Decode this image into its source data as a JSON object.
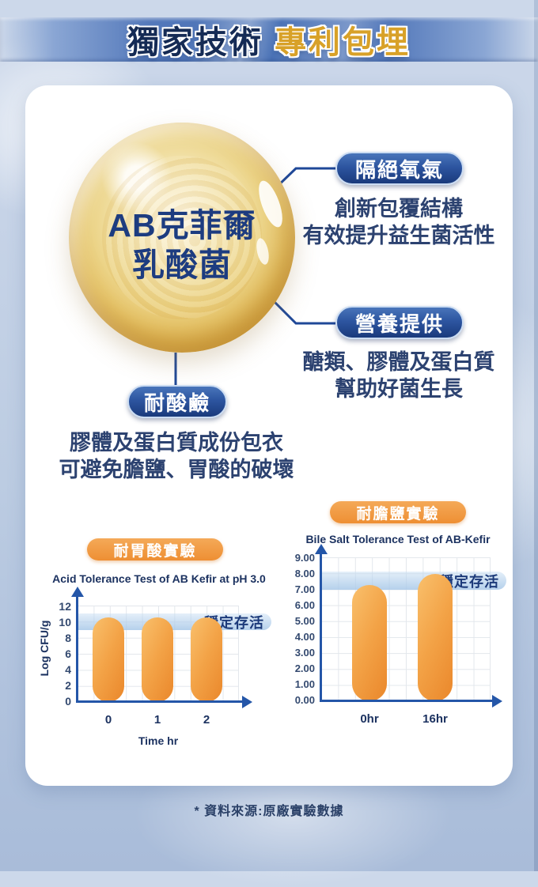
{
  "header": {
    "title_part1": "獨家技術",
    "title_part2": "專利包埋"
  },
  "bubble": {
    "line1": "AB克菲爾",
    "line2": "乳酸菌"
  },
  "callouts": {
    "oxygen": {
      "label": "隔絕氧氣",
      "desc_line1": "創新包覆結構",
      "desc_line2": "有效提升益生菌活性"
    },
    "nutrition": {
      "label": "營養提供",
      "desc_line1": "醣類、膠體及蛋白質",
      "desc_line2": "幫助好菌生長"
    },
    "acid": {
      "label": "耐酸鹼",
      "desc_line1": "膠體及蛋白質成份包衣",
      "desc_line2": "可避免膽鹽、胃酸的破壞"
    }
  },
  "chart_data": [
    {
      "type": "bar",
      "section_label": "耐胃酸實驗",
      "title": "Acid Tolerance Test of AB Kefir at pH 3.0",
      "categories": [
        "0",
        "1",
        "2"
      ],
      "values": [
        10.5,
        10.5,
        10.5
      ],
      "xlabel": "Time hr",
      "ylabel": "Log CFU/g",
      "ylim": [
        0,
        12
      ],
      "yticks": [
        "12",
        "10",
        "8",
        "6",
        "4",
        "2",
        "0"
      ],
      "annotation": "穩定存活",
      "annotation_band_y": [
        9,
        10.5
      ],
      "grid": true,
      "legend": "none",
      "bar_color": "#F09A3E"
    },
    {
      "type": "bar",
      "section_label": "耐膽鹽實驗",
      "title": "Bile Salt Tolerance Test of AB-Kefir",
      "categories": [
        "0hr",
        "16hr"
      ],
      "values": [
        7.3,
        8.0
      ],
      "xlabel": "",
      "ylabel": "",
      "ylim": [
        0,
        9
      ],
      "yticks": [
        "9.00",
        "8.00",
        "7.00",
        "6.00",
        "5.00",
        "4.00",
        "3.00",
        "2.00",
        "1.00",
        "0.00"
      ],
      "annotation": "穩定存活",
      "annotation_band_y": [
        7.0,
        8.1
      ],
      "grid": true,
      "legend": "none",
      "bar_color": "#F09A3E"
    }
  ],
  "footer": {
    "source_note": "* 資料來源:原廠實驗數據"
  },
  "colors": {
    "header_navy": "#152B55",
    "header_gold": "#D8A128",
    "pill_blue": "#2D55A0",
    "pill_orange": "#EE8F33",
    "bar_orange": "#F09A3E",
    "band_blue": "#BDD6EE",
    "axis_blue": "#2456A8",
    "body_text": "#2C4270"
  }
}
